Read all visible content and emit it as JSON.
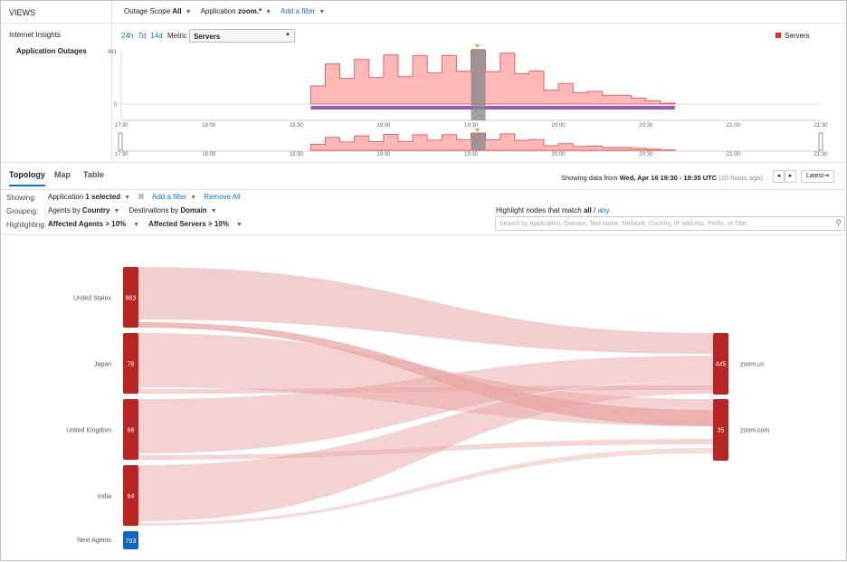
{
  "header": {
    "views": "VIEWS",
    "scope_label": "Outage Scope",
    "scope_value": "All",
    "app_label": "Application",
    "app_value": "zoom.*",
    "add_filter": "Add a filter"
  },
  "sidebar": {
    "section": "Internet Insights",
    "item": "Application Outages"
  },
  "chart_controls": {
    "ranges": [
      "24h",
      "7d",
      "14d"
    ],
    "metric_label": "Metric",
    "metric_value": "Servers",
    "legend": "Servers"
  },
  "chart_data": {
    "type": "area",
    "title": "",
    "xlabel": "",
    "ylabel": "Servers",
    "ylim": [
      0,
      481
    ],
    "y_ticks": [
      "481",
      "0"
    ],
    "x_ticks": [
      "17:30",
      "18:00",
      "18:30",
      "19:00",
      "19:30",
      "20:00",
      "20:30",
      "21:00",
      "21:30"
    ],
    "interval_minutes": 5,
    "start": "18:35",
    "end": "20:40",
    "selected": "19:30",
    "x": [
      "18:35",
      "18:40",
      "18:45",
      "18:50",
      "18:55",
      "19:00",
      "19:05",
      "19:10",
      "19:15",
      "19:20",
      "19:25",
      "19:30",
      "19:35",
      "19:40",
      "19:45",
      "19:50",
      "19:55",
      "20:00",
      "20:05",
      "20:10",
      "20:15",
      "20:20",
      "20:25",
      "20:30",
      "20:35"
    ],
    "values": [
      163,
      361,
      231,
      402,
      239,
      443,
      247,
      435,
      283,
      438,
      296,
      481,
      291,
      459,
      274,
      299,
      125,
      185,
      103,
      114,
      79,
      79,
      54,
      30,
      8
    ],
    "colors": {
      "fill": "#ffb8b8",
      "line": "#f06060",
      "band": "#9b59b6",
      "selected": "#8a8a8a"
    }
  },
  "tabs": [
    "Topology",
    "Map",
    "Table"
  ],
  "time": {
    "prefix": "Showing data from",
    "range": "Wed, Apr 16 19:30 - 19:35 UTC",
    "ago": "(10 hours ago)",
    "latest": "Latest⇥"
  },
  "filters": {
    "showing_label": "Showing:",
    "app_label": "Application",
    "app_value": "1 selected",
    "add_filter": "Add a filter",
    "remove_all": "Remove All",
    "grouping_label": "Grouping:",
    "agents_by": "Agents by",
    "agents_value": "Country",
    "dest_by": "Destinations by",
    "dest_value": "Domain",
    "highlight_label": "Highlighting:",
    "hl1": "Affected Agents > 10%",
    "hl2": "Affected Servers > 10%"
  },
  "search": {
    "label_prefix": "Highlight nodes that match",
    "all": "all",
    "sep": "/",
    "any": "any",
    "placeholder": "Search by Application, Domain, Test name, Network, Country, IP address, Prefix, or Title..."
  },
  "sankey": {
    "sources": [
      {
        "label": "United States",
        "value": "883"
      },
      {
        "label": "Japan",
        "value": "78"
      },
      {
        "label": "United Kingdom",
        "value": "66"
      },
      {
        "label": "India",
        "value": "64"
      }
    ],
    "next": {
      "label": "Next Agents",
      "value": "703"
    },
    "targets": [
      {
        "label": "zoom.us",
        "value": "445"
      },
      {
        "label": "zoom.com",
        "value": "35"
      }
    ],
    "colors": {
      "node": "#b82525",
      "next": "#1565c0",
      "flow": "#e9a5a5"
    }
  }
}
